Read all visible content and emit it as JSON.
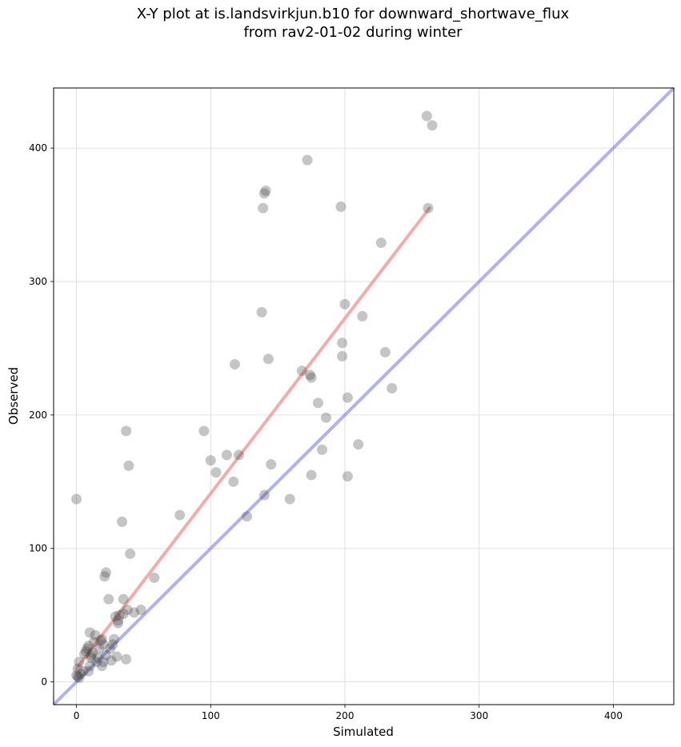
{
  "chart_data": {
    "type": "scatter",
    "title": "X-Y plot at is.landsvirkjun.b10 for downward_shortwave_flux\nfrom rav2-01-02 during winter",
    "xlabel": "Simulated",
    "ylabel": "Observed",
    "xlim": [
      -17,
      445
    ],
    "ylim": [
      -17,
      445
    ],
    "xticks": [
      0,
      100,
      200,
      300,
      400
    ],
    "yticks": [
      0,
      100,
      200,
      300,
      400
    ],
    "grid": true,
    "colors": {
      "points": "#404040",
      "identity_line": "#6f6fef",
      "fit_line": "#f08f8f"
    },
    "identity_line": {
      "x": [
        -17,
        445
      ],
      "y": [
        -17,
        445
      ]
    },
    "fit_line": {
      "x": [
        0,
        263
      ],
      "y": [
        10,
        355
      ]
    },
    "points": {
      "x": [
        0,
        0,
        1,
        1,
        2,
        2,
        3,
        5,
        6,
        7,
        8,
        9,
        9,
        10,
        10,
        11,
        11,
        12,
        13,
        14,
        15,
        16,
        17,
        18,
        19,
        19,
        20,
        20,
        21,
        22,
        22,
        24,
        25,
        26,
        27,
        28,
        29,
        30,
        31,
        31,
        32,
        34,
        35,
        35,
        37,
        37,
        38,
        39,
        40,
        43,
        48,
        58,
        77,
        95,
        100,
        104,
        112,
        117,
        118,
        121,
        127,
        138,
        139,
        140,
        140,
        141,
        143,
        145,
        159,
        168,
        172,
        174,
        175,
        175,
        180,
        183,
        186,
        197,
        198,
        198,
        200,
        202,
        202,
        210,
        213,
        227,
        230,
        235,
        261,
        262,
        265
      ],
      "y": [
        137,
        5,
        10,
        4,
        15,
        3,
        6,
        8,
        21,
        23,
        25,
        27,
        8,
        37,
        12,
        20,
        18,
        22,
        30,
        35,
        15,
        18,
        25,
        31,
        32,
        12,
        28,
        15,
        79,
        82,
        20,
        62,
        25,
        16,
        28,
        32,
        49,
        19,
        44,
        46,
        50,
        120,
        62,
        51,
        17,
        188,
        54,
        162,
        96,
        52,
        54,
        78,
        125,
        188,
        166,
        157,
        170,
        150,
        238,
        170,
        124,
        277,
        355,
        366,
        140,
        368,
        242,
        163,
        137,
        233,
        391,
        230,
        228,
        155,
        209,
        174,
        198,
        356,
        254,
        244,
        283,
        213,
        154,
        178,
        274,
        329,
        247,
        220,
        424,
        355,
        417
      ]
    }
  }
}
